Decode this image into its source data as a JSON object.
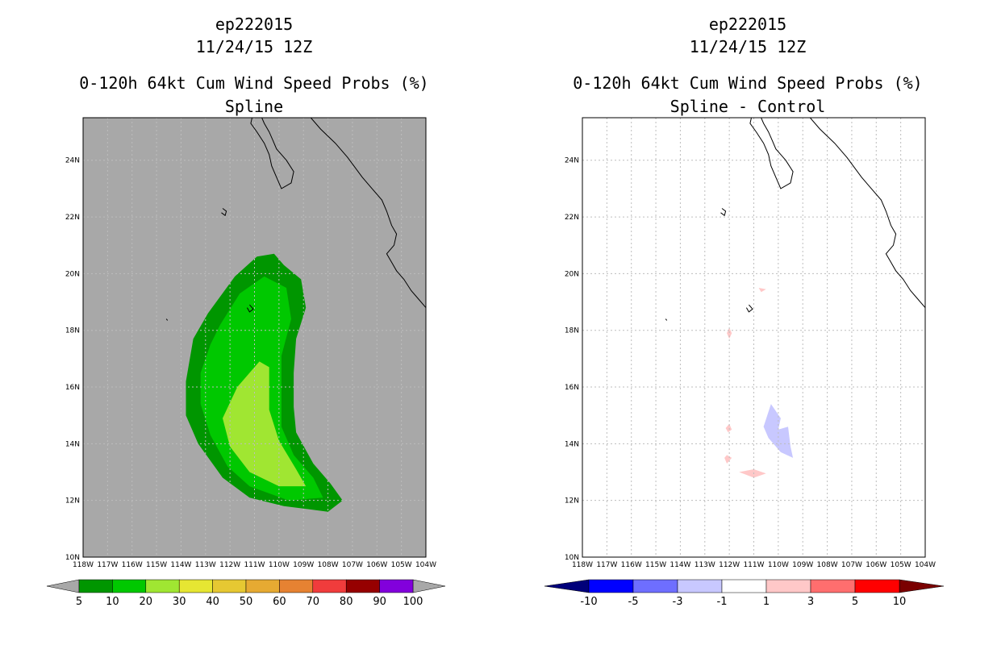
{
  "chart_data": [
    {
      "type": "heatmap",
      "storm_id": "ep222015",
      "date": "11/24/15 12Z",
      "title": "0-120h 64kt Cum Wind Speed Probs (%)",
      "subtitle": "Spline",
      "x_ticks": [
        "118W",
        "117W",
        "116W",
        "115W",
        "114W",
        "113W",
        "112W",
        "111W",
        "110W",
        "109W",
        "108W",
        "107W",
        "106W",
        "105W",
        "104W"
      ],
      "y_ticks": [
        "10N",
        "12N",
        "14N",
        "16N",
        "18N",
        "20N",
        "22N",
        "24N"
      ],
      "xlim": [
        -118,
        -104
      ],
      "ylim": [
        10,
        25.5
      ],
      "background": "#a8a8a8",
      "contours": [
        {
          "level": 5,
          "color": "#009600",
          "points": [
            [
              -112.9,
              18.6
            ],
            [
              -111.8,
              19.9
            ],
            [
              -110.9,
              20.6
            ],
            [
              -110.2,
              20.7
            ],
            [
              -109.8,
              20.3
            ],
            [
              -109.1,
              19.8
            ],
            [
              -108.9,
              18.8
            ],
            [
              -109.3,
              17.7
            ],
            [
              -109.4,
              16.5
            ],
            [
              -109.4,
              15.3
            ],
            [
              -109.3,
              14.4
            ],
            [
              -108.6,
              13.3
            ],
            [
              -107.9,
              12.6
            ],
            [
              -107.4,
              12.0
            ],
            [
              -108.0,
              11.6
            ],
            [
              -109.8,
              11.8
            ],
            [
              -111.2,
              12.1
            ],
            [
              -112.3,
              12.8
            ],
            [
              -113.3,
              14.0
            ],
            [
              -113.8,
              15.0
            ],
            [
              -113.8,
              16.2
            ],
            [
              -113.5,
              17.7
            ]
          ]
        },
        {
          "level": 10,
          "color": "#00c800",
          "points": [
            [
              -112.4,
              18.2
            ],
            [
              -111.6,
              19.3
            ],
            [
              -110.6,
              19.9
            ],
            [
              -109.7,
              19.5
            ],
            [
              -109.5,
              18.4
            ],
            [
              -109.9,
              17.1
            ],
            [
              -109.9,
              15.8
            ],
            [
              -109.9,
              14.6
            ],
            [
              -109.4,
              13.6
            ],
            [
              -108.6,
              12.8
            ],
            [
              -108.2,
              12.1
            ],
            [
              -109.6,
              12.0
            ],
            [
              -111.2,
              12.5
            ],
            [
              -112.1,
              13.2
            ],
            [
              -112.8,
              14.3
            ],
            [
              -113.2,
              15.4
            ],
            [
              -113.2,
              16.5
            ],
            [
              -112.8,
              17.5
            ]
          ]
        },
        {
          "level": 20,
          "color": "#a0e632",
          "points": [
            [
              -111.7,
              16.0
            ],
            [
              -110.8,
              16.9
            ],
            [
              -110.4,
              16.7
            ],
            [
              -110.4,
              15.2
            ],
            [
              -110.0,
              14.1
            ],
            [
              -109.3,
              13.1
            ],
            [
              -108.9,
              12.5
            ],
            [
              -110.0,
              12.5
            ],
            [
              -111.2,
              13.0
            ],
            [
              -112.0,
              13.9
            ],
            [
              -112.3,
              14.9
            ]
          ]
        }
      ],
      "colorbar": {
        "labels": [
          "5",
          "10",
          "20",
          "30",
          "40",
          "50",
          "60",
          "70",
          "80",
          "90",
          "100"
        ],
        "colors": [
          "#009600",
          "#00c800",
          "#a0e632",
          "#e6e632",
          "#e6c832",
          "#e6aa32",
          "#e68232",
          "#f03c3c",
          "#960000",
          "#8200dc"
        ],
        "extend_colors": [
          "#a8a8a8",
          "#a8a8a8"
        ]
      }
    },
    {
      "type": "heatmap",
      "storm_id": "ep222015",
      "date": "11/24/15 12Z",
      "title": "0-120h 64kt Cum Wind Speed Probs (%)",
      "subtitle": "Spline - Control",
      "x_ticks": [
        "118W",
        "117W",
        "116W",
        "115W",
        "114W",
        "113W",
        "112W",
        "111W",
        "110W",
        "109W",
        "108W",
        "107W",
        "106W",
        "105W",
        "104W"
      ],
      "y_ticks": [
        "10N",
        "12N",
        "14N",
        "16N",
        "18N",
        "20N",
        "22N",
        "24N"
      ],
      "xlim": [
        -118,
        -104
      ],
      "ylim": [
        10,
        25.5
      ],
      "background": "#ffffff",
      "contours": [
        {
          "level": -3,
          "color": "#c8c8ff",
          "points": [
            [
              -110.3,
              15.4
            ],
            [
              -109.9,
              14.9
            ],
            [
              -110.0,
              14.5
            ],
            [
              -109.6,
              14.6
            ],
            [
              -109.5,
              13.9
            ],
            [
              -109.4,
              13.5
            ],
            [
              -109.9,
              13.7
            ],
            [
              -110.4,
              14.2
            ],
            [
              -110.6,
              14.6
            ]
          ]
        },
        {
          "level": 1,
          "color": "#ffc8c8",
          "points": [
            [
              -111.6,
              13.0
            ],
            [
              -111.0,
              13.1
            ],
            [
              -110.5,
              12.95
            ],
            [
              -111.0,
              12.8
            ]
          ]
        },
        {
          "level": 1,
          "color": "#ffc8c8",
          "points": [
            [
              -112.1,
              13.6
            ],
            [
              -111.9,
              13.5
            ],
            [
              -112.1,
              13.3
            ],
            [
              -112.2,
              13.5
            ]
          ]
        },
        {
          "level": 1,
          "color": "#ffc8c8",
          "points": [
            [
              -112.0,
              14.7
            ],
            [
              -111.9,
              14.5
            ],
            [
              -112.05,
              14.4
            ],
            [
              -112.15,
              14.55
            ]
          ]
        },
        {
          "level": 1,
          "color": "#ffc8c8",
          "points": [
            [
              -112.0,
              18.1
            ],
            [
              -111.9,
              17.9
            ],
            [
              -112.0,
              17.7
            ],
            [
              -112.1,
              17.9
            ]
          ]
        },
        {
          "level": 1,
          "color": "#ffc8c8",
          "points": [
            [
              -110.8,
              19.5
            ],
            [
              -110.5,
              19.45
            ],
            [
              -110.7,
              19.35
            ]
          ]
        }
      ],
      "colorbar": {
        "labels": [
          "-10",
          "-5",
          "-3",
          "-1",
          "1",
          "3",
          "5",
          "10"
        ],
        "colors": [
          "#0000ff",
          "#6e6eff",
          "#c8c8ff",
          "#ffffff",
          "#ffc8c8",
          "#ff6e6e",
          "#ff0000"
        ],
        "extend_colors": [
          "#00007a",
          "#7a0000"
        ]
      }
    }
  ],
  "coastline": [
    {
      "points": [
        [
          -111.1,
          25.5
        ],
        [
          -111.15,
          25.3
        ],
        [
          -110.9,
          25.0
        ],
        [
          -110.6,
          24.6
        ],
        [
          -110.4,
          24.2
        ],
        [
          -110.3,
          23.8
        ],
        [
          -110.1,
          23.4
        ],
        [
          -109.9,
          23.0
        ],
        [
          -109.5,
          23.2
        ],
        [
          -109.4,
          23.6
        ],
        [
          -109.7,
          24.0
        ],
        [
          -109.9,
          24.2
        ],
        [
          -110.1,
          24.4
        ],
        [
          -110.25,
          24.7
        ],
        [
          -110.4,
          25.0
        ],
        [
          -110.6,
          25.3
        ],
        [
          -110.7,
          25.5
        ]
      ]
    },
    {
      "points": [
        [
          -108.7,
          25.5
        ],
        [
          -108.3,
          25.1
        ],
        [
          -107.7,
          24.6
        ],
        [
          -107.2,
          24.1
        ],
        [
          -106.6,
          23.4
        ],
        [
          -106.2,
          23.0
        ],
        [
          -105.8,
          22.6
        ],
        [
          -105.6,
          22.2
        ],
        [
          -105.4,
          21.7
        ],
        [
          -105.2,
          21.4
        ],
        [
          -105.3,
          21.0
        ],
        [
          -105.6,
          20.7
        ],
        [
          -105.4,
          20.4
        ],
        [
          -105.2,
          20.1
        ],
        [
          -104.9,
          19.8
        ],
        [
          -104.6,
          19.4
        ],
        [
          -104.3,
          19.1
        ],
        [
          -104,
          18.8
        ]
      ]
    },
    {
      "points": [
        [
          -112.3,
          22.3
        ],
        [
          -112.15,
          22.2
        ],
        [
          -112.2,
          22.05
        ],
        [
          -112.35,
          22.15
        ]
      ]
    },
    {
      "points": [
        [
          -111.2,
          18.9
        ],
        [
          -111.05,
          18.75
        ],
        [
          -111.2,
          18.65
        ],
        [
          -111.3,
          18.8
        ]
      ]
    },
    {
      "points": [
        [
          -114.6,
          18.4
        ],
        [
          -114.55,
          18.35
        ]
      ]
    }
  ]
}
